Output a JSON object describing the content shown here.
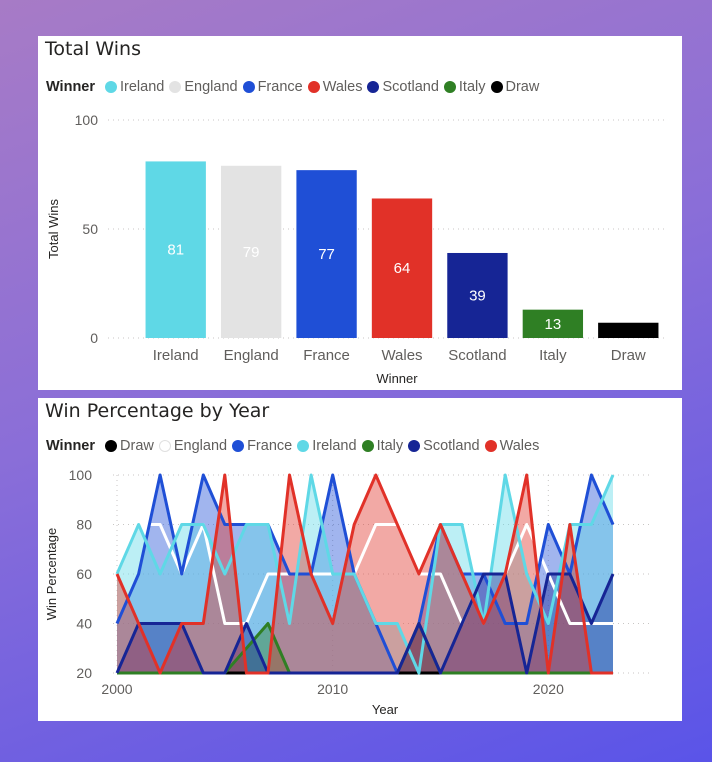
{
  "chart_data": [
    {
      "type": "bar",
      "title": "Total Wins",
      "legend_title": "Winner",
      "legend_position": "top-left",
      "xlabel": "Winner",
      "ylabel": "Total Wins",
      "ylim": [
        0,
        100
      ],
      "yticks": [
        0,
        50,
        100
      ],
      "grid": true,
      "categories": [
        "Ireland",
        "England",
        "France",
        "Wales",
        "Scotland",
        "Italy",
        "Draw"
      ],
      "values": [
        81,
        79,
        77,
        64,
        39,
        13,
        7
      ],
      "data_labels": [
        "81",
        "79",
        "77",
        "64",
        "39",
        "13",
        ""
      ],
      "colors": [
        "#5fd8e6",
        "#e3e3e3",
        "#1f4fd6",
        "#e13128",
        "#162595",
        "#2f7f24",
        "#000000"
      ]
    },
    {
      "type": "area",
      "title": "Win Percentage by Year",
      "legend_title": "Winner",
      "legend_position": "top-left",
      "xlabel": "Year",
      "ylabel": "Win Percentage",
      "xlim": [
        2000,
        2023
      ],
      "ylim": [
        20,
        100
      ],
      "xticks": [
        2000,
        2010,
        2020
      ],
      "yticks": [
        20,
        40,
        60,
        80,
        100
      ],
      "grid": true,
      "x": [
        2000,
        2001,
        2002,
        2003,
        2004,
        2005,
        2006,
        2007,
        2008,
        2009,
        2010,
        2011,
        2012,
        2013,
        2014,
        2015,
        2016,
        2017,
        2018,
        2019,
        2020,
        2021,
        2022,
        2023
      ],
      "series": [
        {
          "name": "Draw",
          "color": "#000000",
          "values": [
            20,
            20,
            20,
            20,
            20,
            20,
            20,
            20,
            20,
            20,
            20,
            20,
            20,
            20,
            20,
            20,
            20,
            20,
            20,
            20,
            20,
            20,
            20,
            20
          ]
        },
        {
          "name": "England",
          "color": "#ffffff",
          "values": [
            60,
            80,
            80,
            60,
            80,
            40,
            40,
            60,
            60,
            60,
            60,
            60,
            80,
            80,
            60,
            60,
            40,
            60,
            60,
            80,
            60,
            40,
            40,
            40
          ]
        },
        {
          "name": "France",
          "color": "#1f4fd6",
          "values": [
            40,
            60,
            100,
            60,
            100,
            80,
            80,
            80,
            60,
            60,
            100,
            60,
            40,
            20,
            40,
            80,
            60,
            60,
            40,
            40,
            80,
            60,
            100,
            80
          ]
        },
        {
          "name": "Ireland",
          "color": "#5fd8e6",
          "values": [
            60,
            80,
            60,
            80,
            80,
            60,
            80,
            80,
            40,
            100,
            60,
            60,
            40,
            40,
            20,
            80,
            80,
            40,
            100,
            60,
            40,
            80,
            80,
            100
          ]
        },
        {
          "name": "Italy",
          "color": "#2f7f24",
          "values": [
            20,
            20,
            20,
            20,
            20,
            20,
            30,
            40,
            20,
            20,
            20,
            20,
            20,
            20,
            40,
            20,
            20,
            20,
            20,
            20,
            20,
            20,
            20,
            20
          ]
        },
        {
          "name": "Scotland",
          "color": "#162595",
          "values": [
            20,
            40,
            40,
            40,
            20,
            20,
            40,
            20,
            20,
            20,
            20,
            20,
            20,
            20,
            40,
            20,
            40,
            60,
            60,
            20,
            60,
            60,
            40,
            60
          ]
        },
        {
          "name": "Wales",
          "color": "#e13128",
          "values": [
            60,
            40,
            20,
            40,
            40,
            100,
            20,
            20,
            100,
            60,
            40,
            80,
            100,
            80,
            60,
            80,
            60,
            40,
            60,
            100,
            20,
            80,
            20,
            20
          ]
        }
      ]
    }
  ]
}
